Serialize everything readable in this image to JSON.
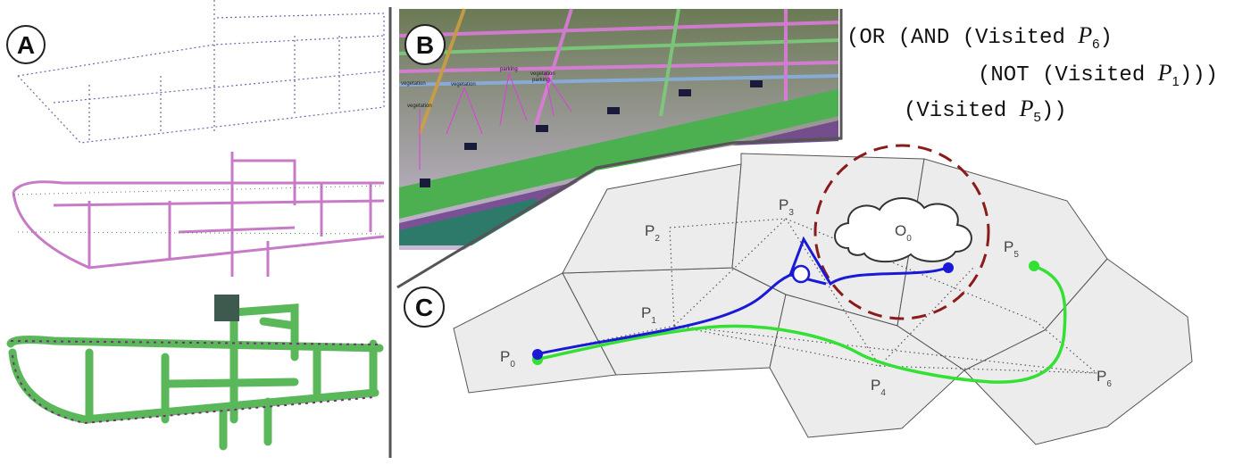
{
  "panels": {
    "a_label": "A",
    "b_label": "B",
    "c_label": "C"
  },
  "formula": {
    "line1_prefix": "(OR (AND (Visited ",
    "line1_var": "P",
    "line1_sub": "6",
    "line1_suffix": ")",
    "line2_prefix": "(NOT (Visited ",
    "line2_var": "P",
    "line2_sub": "1",
    "line2_suffix": ")))",
    "line3_prefix": "(Visited ",
    "line3_var": "P",
    "line3_sub": "5",
    "line3_suffix": "))"
  },
  "graph": {
    "nodes": [
      {
        "name": "P",
        "sub": "0"
      },
      {
        "name": "P",
        "sub": "1"
      },
      {
        "name": "P",
        "sub": "2"
      },
      {
        "name": "P",
        "sub": "3"
      },
      {
        "name": "P",
        "sub": "4"
      },
      {
        "name": "P",
        "sub": "5"
      },
      {
        "name": "P",
        "sub": "6"
      }
    ],
    "obstacle": {
      "name": "O",
      "sub": "0"
    }
  },
  "scene_labels": {
    "veg1": "vegetation",
    "veg2": "vegetation",
    "veg3": "vegetation",
    "parking1": "parking",
    "parking2": "parking",
    "vegetation_left": "vegetation"
  },
  "colors": {
    "blue_path": "#1a1ad6",
    "green_path": "#33e033",
    "obstacle_circle": "#8b1a1a",
    "cell_fill": "#ececec",
    "cell_stroke": "#555555"
  }
}
